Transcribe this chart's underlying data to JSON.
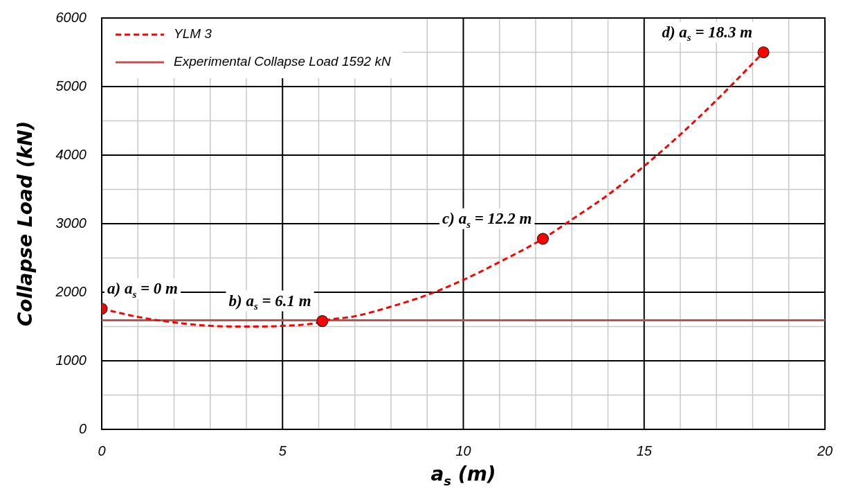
{
  "chart_data": {
    "type": "line",
    "xlabel": "a$_{s}$ (m)",
    "ylabel": "Collapse Load (kN)",
    "xlim": [
      0,
      20
    ],
    "xticks": [
      0,
      5,
      10,
      15,
      20
    ],
    "ylim": [
      0,
      6000
    ],
    "yticks": [
      0,
      1000,
      2000,
      3000,
      4000,
      5000,
      6000
    ],
    "grid": true,
    "legend": "top left",
    "series": [
      {
        "name": "YLM 3",
        "type": "line",
        "color": "#ff0000",
        "line_style": "dashed",
        "marker": "none",
        "x": [
          0,
          1,
          2,
          3,
          4,
          5,
          6,
          6.1,
          7,
          8,
          9,
          10,
          11,
          12.2,
          13,
          14,
          15,
          16,
          17,
          18.3
        ],
        "values": [
          1760,
          1640,
          1560,
          1510,
          1500,
          1510,
          1560,
          1580,
          1650,
          1790,
          1960,
          2180,
          2440,
          2780,
          3060,
          3420,
          3840,
          4300,
          4800,
          5500
        ]
      },
      {
        "name": "Experimental Collapse Load 1592 kN",
        "type": "line",
        "color": "#c0504d",
        "line_style": "solid",
        "marker": "none",
        "x": [
          0,
          20
        ],
        "values": [
          1592,
          1592
        ]
      },
      {
        "type": "scatter",
        "color": "#ff0000",
        "marker": "circle",
        "x": [
          0,
          6.1,
          12.2,
          18.3
        ],
        "values": [
          1760,
          1580,
          2780,
          5500
        ]
      }
    ],
    "annotations": [
      {
        "text": "a) a$_{s}$ = 0 m",
        "x": 0,
        "y": 1760
      },
      {
        "text": "b) a$_{s}$ = 6.1 m",
        "x": 6.1,
        "y": 1580
      },
      {
        "text": "c) a$_{s}$ = 12.2 m",
        "x": 12.2,
        "y": 2780
      },
      {
        "text": "d) a$_{s}$ = 18.3 m",
        "x": 18.3,
        "y": 5500
      }
    ]
  }
}
